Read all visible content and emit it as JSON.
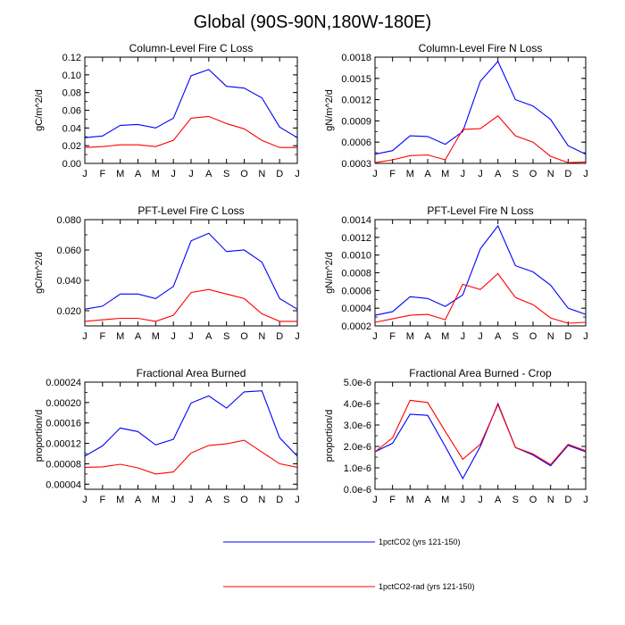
{
  "title": "Global (90S-90N,180W-180E)",
  "chart_data": [
    {
      "type": "line",
      "title": "Column-Level Fire C Loss",
      "ylabel": "gC/m^2/d",
      "categories": [
        "J",
        "F",
        "M",
        "A",
        "M",
        "J",
        "J",
        "A",
        "S",
        "O",
        "N",
        "D",
        "J"
      ],
      "ylim": [
        0.0,
        0.12
      ],
      "yticks": [
        "0.00",
        "0.02",
        "0.04",
        "0.06",
        "0.08",
        "0.10",
        "0.12"
      ],
      "ytick_values": [
        0.0,
        0.02,
        0.04,
        0.06,
        0.08,
        0.1,
        0.12
      ],
      "series": [
        {
          "name": "1pctCO2 (yrs 121-150)",
          "color": "#0000ff",
          "values": [
            0.029,
            0.031,
            0.043,
            0.044,
            0.04,
            0.051,
            0.099,
            0.106,
            0.087,
            0.085,
            0.074,
            0.041,
            0.029
          ]
        },
        {
          "name": "1pctCO2-rad (yrs 121-150)",
          "color": "#ff0000",
          "values": [
            0.018,
            0.019,
            0.021,
            0.021,
            0.019,
            0.026,
            0.051,
            0.053,
            0.045,
            0.039,
            0.026,
            0.018,
            0.018
          ]
        }
      ]
    },
    {
      "type": "line",
      "title": "Column-Level Fire N Loss",
      "ylabel": "gN/m^2/d",
      "categories": [
        "J",
        "F",
        "M",
        "A",
        "M",
        "J",
        "J",
        "A",
        "S",
        "O",
        "N",
        "D",
        "J"
      ],
      "ylim": [
        0.0003,
        0.0018
      ],
      "yticks": [
        "0.0003",
        "0.0006",
        "0.0009",
        "0.0012",
        "0.0015",
        "0.0018"
      ],
      "ytick_values": [
        0.0003,
        0.0006,
        0.0009,
        0.0012,
        0.0015,
        0.0018
      ],
      "series": [
        {
          "name": "1pctCO2 (yrs 121-150)",
          "color": "#0000ff",
          "values": [
            0.00043,
            0.00048,
            0.00069,
            0.00068,
            0.00057,
            0.00075,
            0.00146,
            0.00174,
            0.0012,
            0.00111,
            0.00092,
            0.00055,
            0.00043
          ]
        },
        {
          "name": "1pctCO2-rad (yrs 121-150)",
          "color": "#ff0000",
          "values": [
            0.00031,
            0.00035,
            0.00041,
            0.00042,
            0.00035,
            0.00078,
            0.00079,
            0.00097,
            0.00069,
            0.0006,
            0.0004,
            0.00031,
            0.00032
          ]
        }
      ]
    },
    {
      "type": "line",
      "title": "PFT-Level Fire C Loss",
      "ylabel": "gC/m^2/d",
      "categories": [
        "J",
        "F",
        "M",
        "A",
        "M",
        "J",
        "J",
        "A",
        "S",
        "O",
        "N",
        "D",
        "J"
      ],
      "ylim": [
        0.01,
        0.08
      ],
      "yticks": [
        "0.020",
        "0.040",
        "0.060",
        "0.080"
      ],
      "ytick_values": [
        0.02,
        0.04,
        0.06,
        0.08
      ],
      "series": [
        {
          "name": "1pctCO2 (yrs 121-150)",
          "color": "#0000ff",
          "values": [
            0.021,
            0.023,
            0.031,
            0.031,
            0.028,
            0.036,
            0.066,
            0.071,
            0.059,
            0.06,
            0.052,
            0.028,
            0.021
          ]
        },
        {
          "name": "1pctCO2-rad (yrs 121-150)",
          "color": "#ff0000",
          "values": [
            0.013,
            0.014,
            0.015,
            0.015,
            0.013,
            0.017,
            0.032,
            0.034,
            0.031,
            0.028,
            0.018,
            0.013,
            0.013
          ]
        }
      ]
    },
    {
      "type": "line",
      "title": "PFT-Level Fire N Loss",
      "ylabel": "gN/m^2/d",
      "categories": [
        "J",
        "F",
        "M",
        "A",
        "M",
        "J",
        "J",
        "A",
        "S",
        "O",
        "N",
        "D",
        "J"
      ],
      "ylim": [
        0.0002,
        0.0014
      ],
      "yticks": [
        "0.0002",
        "0.0004",
        "0.0006",
        "0.0008",
        "0.0010",
        "0.0012",
        "0.0014"
      ],
      "ytick_values": [
        0.0002,
        0.0004,
        0.0006,
        0.0008,
        0.001,
        0.0012,
        0.0014
      ],
      "series": [
        {
          "name": "1pctCO2 (yrs 121-150)",
          "color": "#0000ff",
          "values": [
            0.00032,
            0.00036,
            0.00053,
            0.00051,
            0.00042,
            0.00055,
            0.00107,
            0.00133,
            0.00088,
            0.00081,
            0.00066,
            0.0004,
            0.00033
          ]
        },
        {
          "name": "1pctCO2-rad (yrs 121-150)",
          "color": "#ff0000",
          "values": [
            0.00024,
            0.00028,
            0.00032,
            0.00033,
            0.00027,
            0.00067,
            0.00061,
            0.00079,
            0.00052,
            0.00044,
            0.00029,
            0.00023,
            0.00024
          ]
        }
      ]
    },
    {
      "type": "line",
      "title": "Fractional Area Burned",
      "ylabel": "proportion/d",
      "categories": [
        "J",
        "F",
        "M",
        "A",
        "M",
        "J",
        "J",
        "A",
        "S",
        "O",
        "N",
        "D",
        "J"
      ],
      "ylim": [
        3e-05,
        0.00024
      ],
      "yticks": [
        "0.00004",
        "0.00008",
        "0.00012",
        "0.00016",
        "0.00020",
        "0.00024"
      ],
      "ytick_values": [
        4e-05,
        8e-05,
        0.00012,
        0.00016,
        0.0002,
        0.00024
      ],
      "series": [
        {
          "name": "1pctCO2 (yrs 121-150)",
          "color": "#0000ff",
          "values": [
            9.5e-05,
            0.000115,
            0.00015,
            0.000143,
            0.000117,
            0.000128,
            0.000199,
            0.000213,
            0.000189,
            0.000221,
            0.000223,
            0.000131,
            9.5e-05
          ]
        },
        {
          "name": "1pctCO2-rad (yrs 121-150)",
          "color": "#ff0000",
          "values": [
            7.3e-05,
            7.4e-05,
            7.9e-05,
            7.2e-05,
            6e-05,
            6.4e-05,
            0.000101,
            0.000116,
            0.000119,
            0.000126,
            0.000103,
            8e-05,
            7.3e-05
          ]
        }
      ]
    },
    {
      "type": "line",
      "title": "Fractional Area Burned - Crop",
      "ylabel": "proportion/d",
      "categories": [
        "J",
        "F",
        "M",
        "A",
        "M",
        "J",
        "J",
        "A",
        "S",
        "O",
        "N",
        "D",
        "J"
      ],
      "ylim": [
        0.0,
        5e-06
      ],
      "yticks": [
        "0.0e-6",
        "1.0e-6",
        "2.0e-6",
        "3.0e-6",
        "4.0e-6",
        "5.0e-6"
      ],
      "ytick_values": [
        0.0,
        1e-06,
        2e-06,
        3e-06,
        4e-06,
        5e-06
      ],
      "series": [
        {
          "name": "1pctCO2 (yrs 121-150)",
          "color": "#0000ff",
          "values": [
            1.75e-06,
            2.15e-06,
            3.5e-06,
            3.45e-06,
            2e-06,
            5e-07,
            2e-06,
            4e-06,
            1.95e-06,
            1.6e-06,
            1.1e-06,
            2.05e-06,
            1.75e-06
          ]
        },
        {
          "name": "1pctCO2-rad (yrs 121-150)",
          "color": "#ff0000",
          "values": [
            1.75e-06,
            2.4e-06,
            4.15e-06,
            4.05e-06,
            2.7e-06,
            1.4e-06,
            2.1e-06,
            3.95e-06,
            1.95e-06,
            1.65e-06,
            1.15e-06,
            2.1e-06,
            1.8e-06
          ]
        }
      ]
    }
  ],
  "legend": [
    {
      "label": "1pctCO2 (yrs 121-150)",
      "color": "#0000ff"
    },
    {
      "label": "1pctCO2-rad (yrs 121-150)",
      "color": "#ff0000"
    }
  ]
}
